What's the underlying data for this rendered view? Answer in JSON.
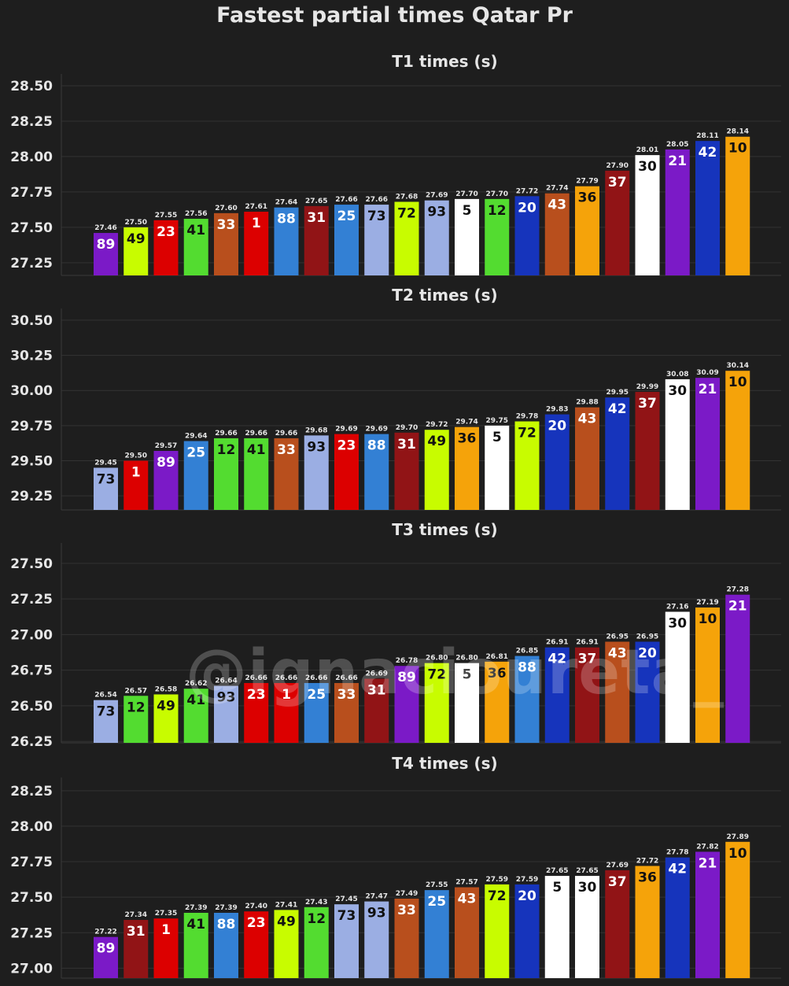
{
  "title": "Fastest partial times Qatar Pr",
  "watermark": "@ignacioureta_",
  "team_colors": {
    "1": "#dc0000",
    "11": "#dc0000",
    "23": "#dc0000",
    "4": "#ff8000",
    "81": "#ff8000",
    "10": "#f5a30a",
    "21": "#7b1ac7",
    "42": "#1634bc",
    "20": "#1634bc",
    "30": "#ffffff",
    "5": "#ffffff",
    "37": "#911416",
    "31": "#911416",
    "36": "#f5a30a",
    "43": "#b84f1d",
    "33": "#b84f1d",
    "88": "#3380d4",
    "25": "#3380d4",
    "73": "#9baee3",
    "93": "#9baee3",
    "72": "#c8fc00",
    "49": "#c8fc00",
    "12": "#53dc30",
    "41": "#53dc30",
    "89": "#7b1ac7"
  },
  "chart_data": [
    {
      "type": "bar",
      "title": "T1 times (s)",
      "ylim": [
        27.16,
        28.55
      ],
      "yticks": [
        "27.25",
        "27.50",
        "27.75",
        "28.00",
        "28.25",
        "28.50"
      ],
      "categories": [
        "89",
        "49",
        "23",
        "41",
        "33",
        "1",
        "88",
        "31",
        "25",
        "73",
        "72",
        "93",
        "5",
        "12",
        "20",
        "43",
        "36",
        "37",
        "30",
        "21",
        "42",
        "10"
      ],
      "values": [
        27.46,
        27.5,
        27.55,
        27.56,
        27.6,
        27.61,
        27.64,
        27.65,
        27.66,
        27.66,
        27.68,
        27.69,
        27.7,
        27.7,
        27.72,
        27.74,
        27.79,
        27.9,
        28.01,
        28.05,
        28.11,
        28.14
      ],
      "labels": [
        "27.46",
        "27.50",
        "27.55",
        "27.56",
        "27.60",
        "27.61",
        "27.64",
        "27.65",
        "27.66",
        "27.66",
        "27.68",
        "27.69",
        "27.70",
        "27.70",
        "27.72",
        "27.74",
        "27.79",
        "27.90",
        "28.01",
        "28.05",
        "28.11",
        "28.14"
      ]
    },
    {
      "type": "bar",
      "title": "T2 times (s)",
      "ylim": [
        29.15,
        30.55
      ],
      "yticks": [
        "29.25",
        "29.50",
        "29.75",
        "30.00",
        "30.25",
        "30.50"
      ],
      "categories": [
        "73",
        "1",
        "89",
        "25",
        "12",
        "41",
        "33",
        "93",
        "23",
        "88",
        "31",
        "49",
        "36",
        "5",
        "72",
        "20",
        "43",
        "42",
        "37",
        "30",
        "21",
        "10"
      ],
      "values": [
        29.45,
        29.5,
        29.57,
        29.64,
        29.66,
        29.66,
        29.66,
        29.68,
        29.69,
        29.69,
        29.7,
        29.72,
        29.74,
        29.75,
        29.78,
        29.83,
        29.88,
        29.95,
        29.99,
        30.08,
        30.09,
        30.14
      ],
      "labels": [
        "29.45",
        "29.50",
        "29.57",
        "29.64",
        "29.66",
        "29.66",
        "29.66",
        "29.68",
        "29.69",
        "29.69",
        "29.70",
        "29.72",
        "29.74",
        "29.75",
        "29.78",
        "29.83",
        "29.88",
        "29.95",
        "29.99",
        "30.08",
        "30.09",
        "30.14"
      ]
    },
    {
      "type": "bar",
      "title": "T3 times (s)",
      "ylim": [
        26.24,
        27.61
      ],
      "yticks": [
        "26.25",
        "26.50",
        "26.75",
        "27.00",
        "27.25",
        "27.50"
      ],
      "categories": [
        "73",
        "12",
        "49",
        "41",
        "93",
        "23",
        "1",
        "25",
        "33",
        "31",
        "89",
        "72",
        "5",
        "36",
        "88",
        "42",
        "37",
        "43",
        "20",
        "30",
        "10",
        "21"
      ],
      "values": [
        26.54,
        26.57,
        26.58,
        26.62,
        26.64,
        26.66,
        26.66,
        26.66,
        26.66,
        26.69,
        26.78,
        26.8,
        26.8,
        26.81,
        26.85,
        26.91,
        26.91,
        26.95,
        26.95,
        27.16,
        27.19,
        27.28
      ],
      "labels": [
        "26.54",
        "26.57",
        "26.58",
        "26.62",
        "26.64",
        "26.66",
        "26.66",
        "26.66",
        "26.66",
        "26.69",
        "26.78",
        "26.80",
        "26.80",
        "26.81",
        "26.85",
        "26.91",
        "26.91",
        "26.95",
        "26.95",
        "27.16",
        "27.19",
        "27.28"
      ]
    },
    {
      "type": "bar",
      "title": "T4 times (s)",
      "ylim": [
        26.93,
        28.31
      ],
      "yticks": [
        "27.00",
        "27.25",
        "27.50",
        "27.75",
        "28.00",
        "28.25"
      ],
      "categories": [
        "89",
        "31",
        "1",
        "41",
        "88",
        "23",
        "49",
        "12",
        "73",
        "93",
        "33",
        "25",
        "43",
        "72",
        "20",
        "5",
        "30",
        "37",
        "36",
        "42",
        "21",
        "10"
      ],
      "values": [
        27.22,
        27.34,
        27.35,
        27.39,
        27.39,
        27.4,
        27.41,
        27.43,
        27.45,
        27.47,
        27.49,
        27.55,
        27.57,
        27.59,
        27.59,
        27.65,
        27.65,
        27.69,
        27.72,
        27.78,
        27.82,
        27.89
      ],
      "labels": [
        "27.22",
        "27.34",
        "27.35",
        "27.39",
        "27.39",
        "27.40",
        "27.41",
        "27.43",
        "27.45",
        "27.47",
        "27.49",
        "27.55",
        "27.57",
        "27.59",
        "27.59",
        "27.65",
        "27.65",
        "27.69",
        "27.72",
        "27.78",
        "27.82",
        "27.89"
      ]
    }
  ]
}
